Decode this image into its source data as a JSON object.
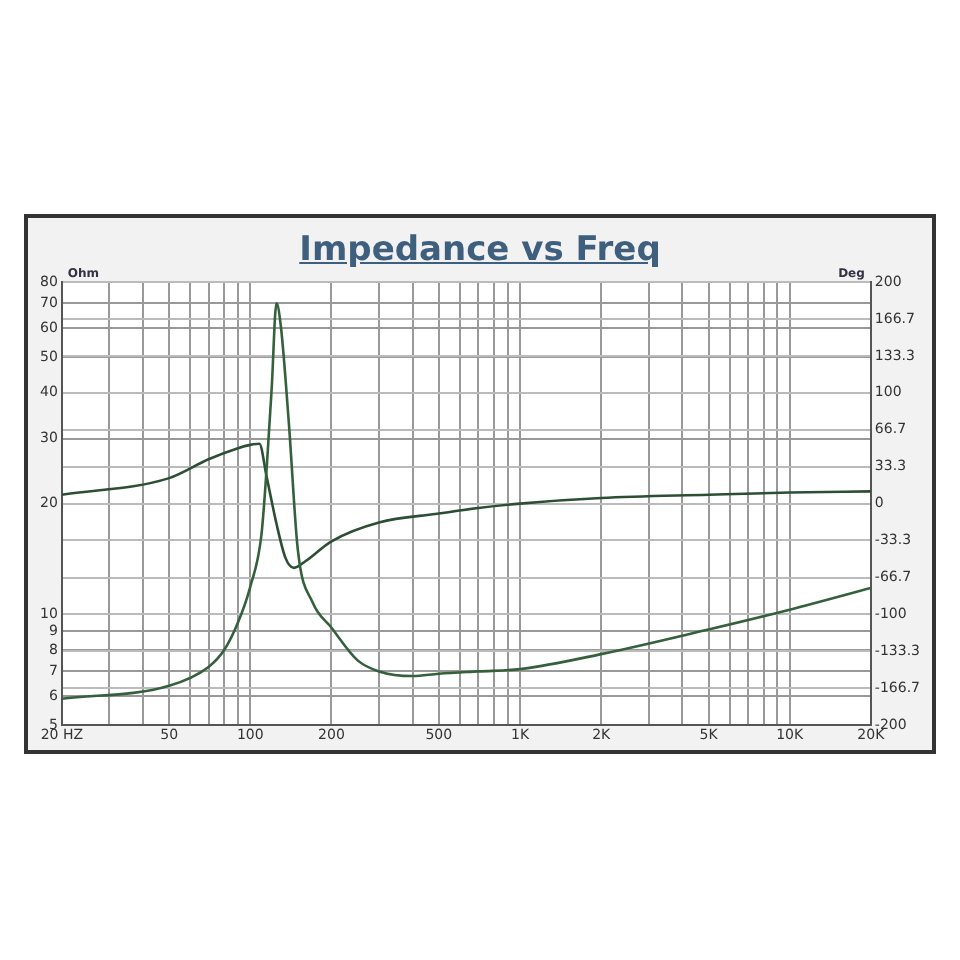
{
  "chart_data": {
    "type": "line",
    "title": "Impedance vs Freq",
    "ylabel": "Ohm",
    "y2label": "Deg",
    "log": "xy",
    "grid": true,
    "legend": false,
    "marker": "none",
    "line_style": "solid",
    "xlim": [
      20,
      20000
    ],
    "xticks": [
      {
        "value": 20,
        "label": "20 HZ"
      },
      {
        "value": 30,
        "label": null
      },
      {
        "value": 40,
        "label": null
      },
      50,
      {
        "value": 60,
        "label": null
      },
      {
        "value": 70,
        "label": null
      },
      {
        "value": 80,
        "label": null
      },
      {
        "value": 90,
        "label": null
      },
      100,
      200,
      {
        "value": 300,
        "label": null
      },
      {
        "value": 400,
        "label": null
      },
      500,
      {
        "value": 600,
        "label": null
      },
      {
        "value": 700,
        "label": null
      },
      {
        "value": 800,
        "label": null
      },
      {
        "value": 900,
        "label": null
      },
      {
        "value": 1000,
        "label": "1K"
      },
      {
        "value": 2000,
        "label": "2K"
      },
      {
        "value": 3000,
        "label": null
      },
      {
        "value": 4000,
        "label": null
      },
      {
        "value": 5000,
        "label": "5K"
      },
      {
        "value": 6000,
        "label": null
      },
      {
        "value": 7000,
        "label": null
      },
      {
        "value": 8000,
        "label": null
      },
      {
        "value": 9000,
        "label": null
      },
      {
        "value": 10000,
        "label": "10K"
      },
      {
        "value": 20000,
        "label": "20K"
      }
    ],
    "ylim": [
      5,
      80
    ],
    "yticks": [
      5,
      6,
      7,
      8,
      9,
      10,
      20,
      30,
      40,
      50,
      60,
      70,
      80
    ],
    "y2lim": [
      -200,
      200
    ],
    "y2ticks": [
      -200,
      -166.7,
      -133.3,
      -100,
      -66.7,
      -33.3,
      0,
      33.3,
      66.7,
      100,
      133.3,
      166.7,
      200
    ],
    "series": [
      {
        "color": "#35603c",
        "x": [
          20,
          50,
          70,
          80,
          90,
          100,
          110,
          115,
          120,
          125,
          130,
          139,
          150,
          170,
          200,
          250,
          300,
          400,
          500,
          700,
          1000,
          2000,
          5000,
          10000,
          20000
        ],
        "values": [
          5.9,
          6.4,
          7.2,
          8,
          9.5,
          11.9,
          16.5,
          25,
          41,
          70,
          60,
          33,
          15,
          10.8,
          9.2,
          7.5,
          7,
          6.8,
          6.9,
          7,
          7.1,
          7.8,
          9.1,
          10.3,
          11.8
        ]
      },
      {
        "color": "#2c4f33",
        "axis": "y2",
        "x": [
          20,
          50,
          70,
          90,
          100,
          108,
          115,
          125,
          135,
          145,
          160,
          200,
          300,
          500,
          700,
          1000,
          2000,
          5000,
          10000,
          20000
        ],
        "values": [
          8,
          23,
          40,
          50,
          53,
          54,
          24,
          -18,
          -49,
          -58,
          -52,
          -34,
          -17,
          -9,
          -4,
          0,
          5,
          8,
          10,
          11
        ]
      }
    ]
  }
}
